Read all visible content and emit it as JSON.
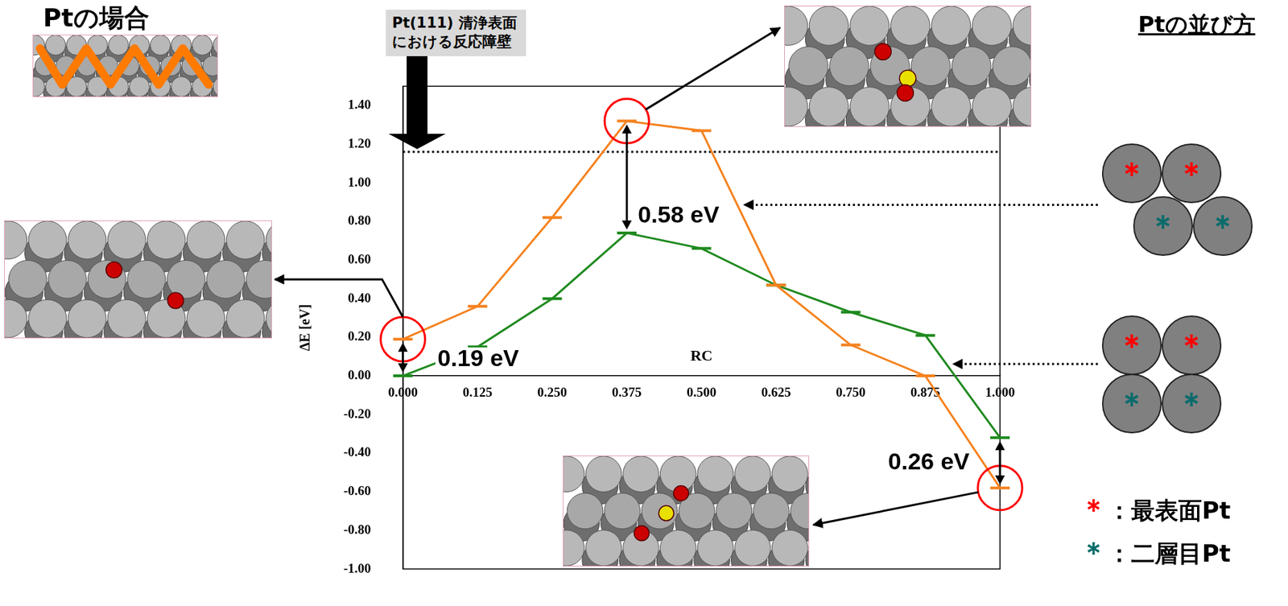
{
  "header": {
    "title": "Ptの場合"
  },
  "chart_data": {
    "type": "line",
    "x": [
      0,
      0.125,
      0.25,
      0.375,
      0.5,
      0.625,
      0.75,
      0.875,
      1.0
    ],
    "series": [
      {
        "color": "#f5821f",
        "marker": "dash",
        "values": [
          0.19,
          0.36,
          0.82,
          1.32,
          1.27,
          0.47,
          0.16,
          0.0,
          -0.58
        ],
        "highlighted_x": [
          0,
          0.375,
          1.0
        ]
      },
      {
        "color": "#1f8a1f",
        "marker": "dash",
        "values": [
          0.0,
          0.15,
          0.4,
          0.74,
          0.66,
          0.47,
          0.33,
          0.21,
          -0.32
        ]
      }
    ],
    "x_label": "RC",
    "y_label": "ΔE [eV]",
    "xlim": [
      0,
      1.0
    ],
    "xticks": [
      {
        "value": 0,
        "label": "0.000"
      },
      {
        "value": 0.125,
        "label": "0.125"
      },
      {
        "value": 0.25,
        "label": "0.250"
      },
      {
        "value": 0.375,
        "label": "0.375"
      },
      {
        "value": 0.5,
        "label": "0.500"
      },
      {
        "value": 0.625,
        "label": "0.625"
      },
      {
        "value": 0.75,
        "label": "0.750"
      },
      {
        "value": 0.875,
        "label": "0.875"
      },
      {
        "value": 1.0,
        "label": "1.000"
      }
    ],
    "ylim": [
      -1.0,
      1.5
    ],
    "yticks": [
      {
        "value": -1.0,
        "label": "-1.00"
      },
      {
        "value": -0.8,
        "label": "-0.80"
      },
      {
        "value": -0.6,
        "label": "-0.60"
      },
      {
        "value": -0.4,
        "label": "-0.40"
      },
      {
        "value": -0.2,
        "label": "-0.20"
      },
      {
        "value": 0,
        "label": "0.00"
      },
      {
        "value": 0.2,
        "label": "0.20"
      },
      {
        "value": 0.4,
        "label": "0.40"
      },
      {
        "value": 0.6,
        "label": "0.60"
      },
      {
        "value": 0.8,
        "label": "0.80"
      },
      {
        "value": 1.0,
        "label": "1.00"
      },
      {
        "value": 1.2,
        "label": "1.20"
      },
      {
        "value": 1.4,
        "label": "1.40"
      }
    ],
    "grid": false,
    "reference_line": {
      "value": 1.16,
      "label": "Pt(111) 清浄表面における反応障壁",
      "line_style": "dotted"
    },
    "annotations": [
      {
        "text": "0.58 eV",
        "x": 0.375
      },
      {
        "text": "0.19 eV",
        "x": 0
      },
      {
        "text": "0.26 eV",
        "x": 1.0
      }
    ]
  },
  "arrangement": {
    "title": "Ptの並び方",
    "symbol": "＊",
    "key": [
      {
        "color": "#ff0000",
        "text": "：最表面Pt"
      },
      {
        "color": "#0b6b6b",
        "text": "：二層目Pt"
      }
    ]
  }
}
